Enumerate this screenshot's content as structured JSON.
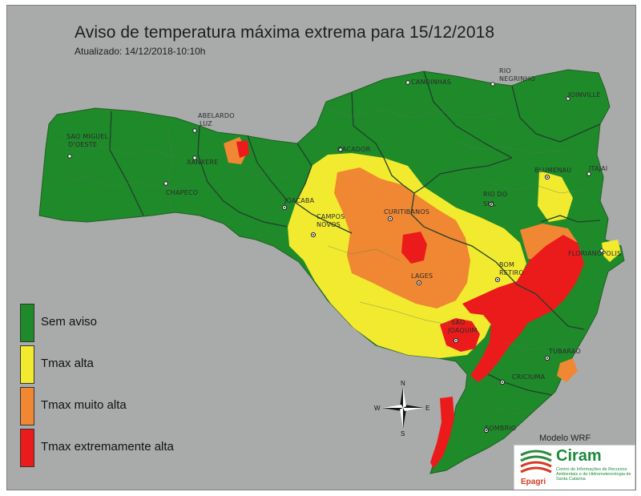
{
  "header": {
    "title": "Aviso de temperatura máxima extrema para 15/12/2018",
    "updated": "Atualizado: 14/12/2018-10:10h"
  },
  "colors": {
    "background": "#a9abaa",
    "sem_aviso": "#1e8a2a",
    "tmax_alta": "#f1ea2f",
    "tmax_muito_alta": "#f08733",
    "tmax_extremamente_alta": "#ec1b1b"
  },
  "legend": {
    "items": [
      {
        "label": "Sem aviso",
        "color": "#1e8a2a"
      },
      {
        "label": "Tmax alta",
        "color": "#f1ea2f"
      },
      {
        "label": "Tmax muito alta",
        "color": "#f08733"
      },
      {
        "label": "Tmax extremamente alta",
        "color": "#ec1b1b"
      }
    ]
  },
  "cities": [
    "SAO MIGUEL D'OESTE",
    "ABELARDO LUZ",
    "XANXERE",
    "CHAPECO",
    "CACADOR",
    "JOACABA",
    "CAMPOS NOVOS",
    "CURITIBANOS",
    "CANOINHAS",
    "RIO NEGRINHO",
    "JOINVILLE",
    "BLUMENAU",
    "ITAJAI",
    "RIO DO SUL",
    "FLORIANOPOLIS",
    "BOM RETIRO",
    "LAGES",
    "SAO JOAQUIM",
    "TUBARAO",
    "CRICIUMA",
    "SOMBRIO"
  ],
  "compass": {
    "n": "N",
    "s": "S",
    "e": "E",
    "w": "W",
    "icon": "compass-rose-icon"
  },
  "footer": {
    "model": "Modelo WRF",
    "logo_brand": "Ciram",
    "logo_org": "Epagri",
    "logo_description": "Centro de Informações de Recursos Ambientais e de Hidrometeorologia de Santa Catarina"
  }
}
